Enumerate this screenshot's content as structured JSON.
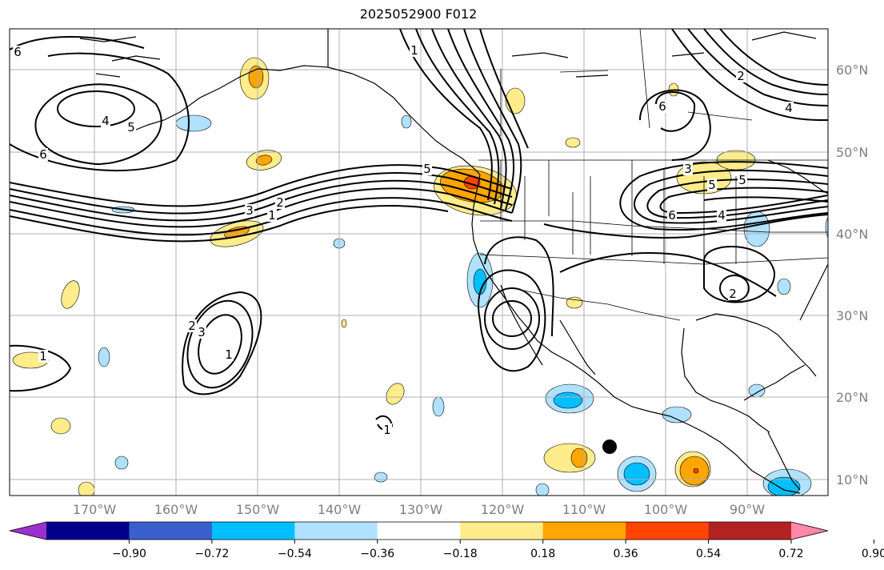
{
  "title": "2025052900 F012",
  "lon_ticks": [
    "170°W",
    "160°W",
    "150°W",
    "140°W",
    "130°W",
    "120°W",
    "110°W",
    "100°W",
    "90°W"
  ],
  "lat_ticks": [
    "60°N",
    "50°N",
    "40°N",
    "30°N",
    "20°N",
    "10°N"
  ],
  "colorbar": {
    "ticks": [
      "−0.90",
      "−0.72",
      "−0.54",
      "−0.36",
      "−0.18",
      "0.18",
      "0.36",
      "0.54",
      "0.72",
      "0.90"
    ],
    "colors": [
      "#9932cc",
      "#00008b",
      "#3a5fcd",
      "#00bfff",
      "#b0e2ff",
      "#ffffff",
      "#ffec8b",
      "#ffa500",
      "#ff4500",
      "#b22222",
      "#ff88aa"
    ]
  },
  "contour_labels": [
    "6",
    "4",
    "5",
    "6",
    "3",
    "1",
    "2",
    "5",
    "1",
    "2",
    "3",
    "1",
    "3",
    "5",
    "6",
    "4",
    "2",
    "1",
    "1",
    "6",
    "5",
    "2",
    "4"
  ],
  "marker": "storm-center"
}
